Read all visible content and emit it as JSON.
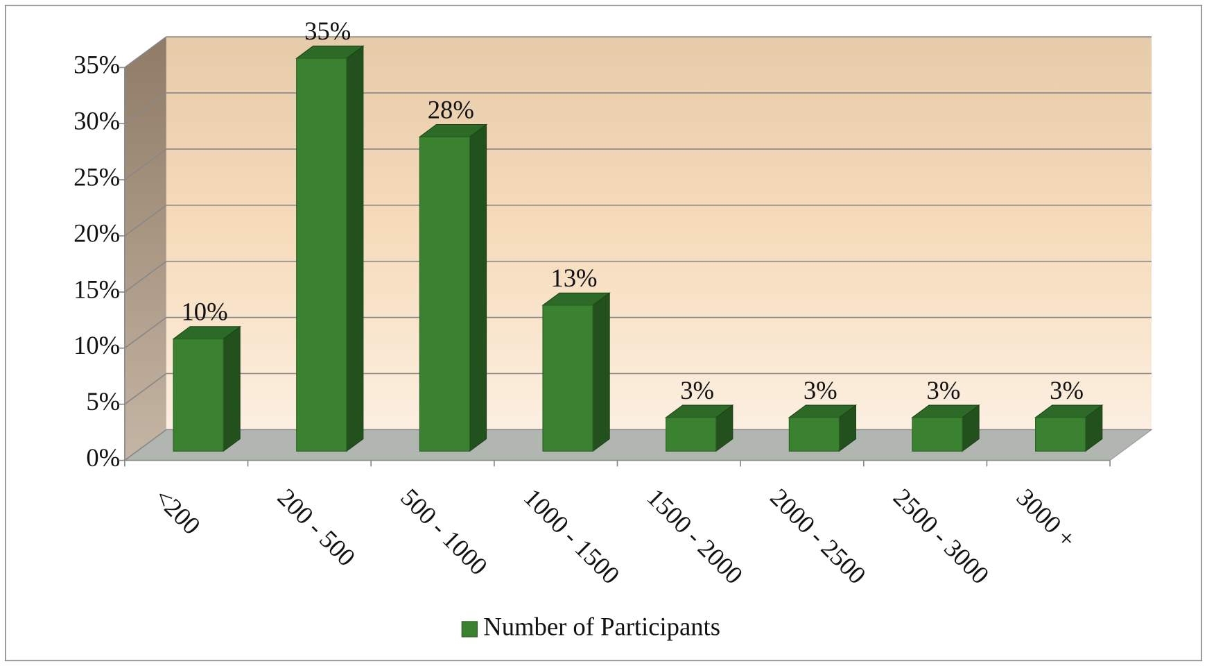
{
  "chart_data": {
    "type": "bar3d",
    "categories": [
      "<200",
      "200 - 500",
      "500 - 1000",
      "1000 - 1500",
      "1500 - 2000",
      "2000 - 2500",
      "2500 - 3000",
      "3000 +"
    ],
    "series": [
      {
        "name": "Number of Participants",
        "color": "#3a8230",
        "values": [
          10,
          35,
          28,
          13,
          3,
          3,
          3,
          3
        ],
        "value_labels": [
          "10%",
          "35%",
          "28%",
          "13%",
          "3%",
          "3%",
          "3%",
          "3%"
        ]
      }
    ],
    "ylim": [
      0,
      35
    ],
    "yticks": [
      {
        "value": 0,
        "label": "0%"
      },
      {
        "value": 5,
        "label": "5%"
      },
      {
        "value": 10,
        "label": "10%"
      },
      {
        "value": 15,
        "label": "15%"
      },
      {
        "value": 20,
        "label": "20%"
      },
      {
        "value": 25,
        "label": "25%"
      },
      {
        "value": 30,
        "label": "30%"
      },
      {
        "value": 35,
        "label": "35%"
      }
    ],
    "grid": true,
    "legend": "bottom"
  }
}
